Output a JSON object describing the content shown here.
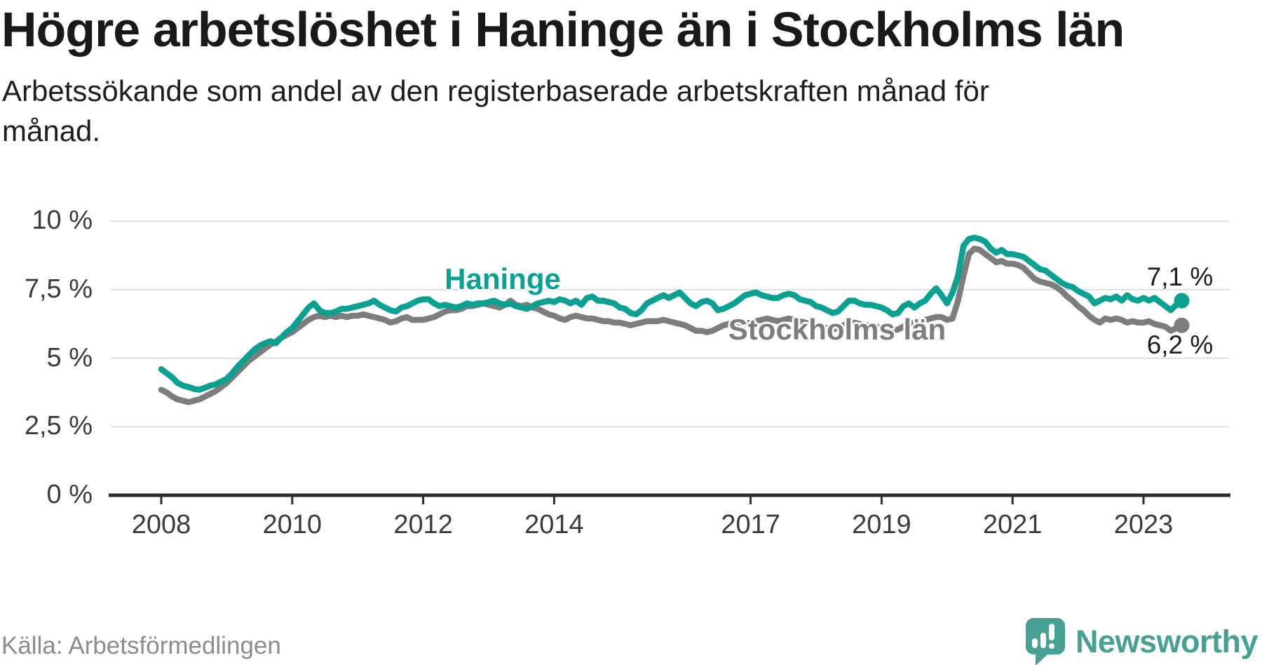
{
  "chart_data": {
    "type": "line",
    "title": "Högre arbetslöshet i Haninge än i Stockholms län",
    "subtitle_lines": [
      "Arbetssökande som andel av den registerbaserade arbetskraften månad för",
      "månad."
    ],
    "source": "Källa: Arbetsförmedlingen",
    "x_start_year": 2008,
    "interval_months": 1,
    "x_tick_years": [
      2008,
      2010,
      2012,
      2014,
      2017,
      2019,
      2021,
      2023
    ],
    "y_ticks": [
      {
        "value": 0,
        "label": "0 %"
      },
      {
        "value": 2.5,
        "label": "2,5 %"
      },
      {
        "value": 5,
        "label": "5 %"
      },
      {
        "value": 7.5,
        "label": "7,5 %"
      },
      {
        "value": 10,
        "label": "10 %"
      }
    ],
    "ylim": [
      0,
      10
    ],
    "grid": "horizontal",
    "series": [
      {
        "name": "Haninge",
        "color": "#0aa092",
        "end_label": "7,1 %",
        "end_value": 7.1,
        "values": [
          4.6,
          4.45,
          4.3,
          4.1,
          4.0,
          3.95,
          3.88,
          3.85,
          3.92,
          4.0,
          4.05,
          4.15,
          4.25,
          4.45,
          4.7,
          4.9,
          5.1,
          5.3,
          5.45,
          5.55,
          5.62,
          5.55,
          5.75,
          5.95,
          6.1,
          6.35,
          6.6,
          6.85,
          7.0,
          6.75,
          6.65,
          6.65,
          6.7,
          6.8,
          6.8,
          6.85,
          6.9,
          6.95,
          7.0,
          7.1,
          6.95,
          6.85,
          6.75,
          6.7,
          6.85,
          6.9,
          7.0,
          7.1,
          7.15,
          7.15,
          7.0,
          6.9,
          6.95,
          6.9,
          6.85,
          6.9,
          7.0,
          6.95,
          7.0,
          7.0,
          7.05,
          7.1,
          7.0,
          6.95,
          7.0,
          6.9,
          6.85,
          6.8,
          6.9,
          7.0,
          7.05,
          7.1,
          7.05,
          7.15,
          7.1,
          7.0,
          7.1,
          6.95,
          7.2,
          7.25,
          7.1,
          7.1,
          7.05,
          7.0,
          6.85,
          6.8,
          6.65,
          6.6,
          6.75,
          7.0,
          7.1,
          7.2,
          7.3,
          7.2,
          7.3,
          7.4,
          7.2,
          7.0,
          6.9,
          7.05,
          7.1,
          7.0,
          6.75,
          6.8,
          6.9,
          7.0,
          7.15,
          7.3,
          7.35,
          7.4,
          7.3,
          7.25,
          7.2,
          7.2,
          7.3,
          7.35,
          7.3,
          7.15,
          7.1,
          7.05,
          6.9,
          6.85,
          6.75,
          6.65,
          6.7,
          6.9,
          7.1,
          7.1,
          7.0,
          6.95,
          6.95,
          6.9,
          6.85,
          6.75,
          6.6,
          6.65,
          6.9,
          7.0,
          6.85,
          7.0,
          7.1,
          7.35,
          7.55,
          7.3,
          7.0,
          7.4,
          8.0,
          9.1,
          9.35,
          9.4,
          9.35,
          9.25,
          9.0,
          8.85,
          8.95,
          8.8,
          8.8,
          8.75,
          8.7,
          8.55,
          8.4,
          8.25,
          8.2,
          8.05,
          7.9,
          7.75,
          7.65,
          7.6,
          7.45,
          7.35,
          7.25,
          7.0,
          7.1,
          7.2,
          7.15,
          7.25,
          7.1,
          7.3,
          7.15,
          7.1,
          7.2,
          7.1,
          7.2,
          7.05,
          6.9,
          6.75,
          6.95,
          7.1
        ]
      },
      {
        "name": "Stockholms län",
        "color": "#7d7d7d",
        "end_label": "6,2 %",
        "end_value": 6.2,
        "values": [
          3.85,
          3.75,
          3.6,
          3.5,
          3.45,
          3.4,
          3.45,
          3.5,
          3.6,
          3.7,
          3.8,
          3.95,
          4.1,
          4.3,
          4.5,
          4.7,
          4.9,
          5.05,
          5.2,
          5.35,
          5.5,
          5.6,
          5.75,
          5.85,
          5.95,
          6.1,
          6.25,
          6.4,
          6.5,
          6.55,
          6.5,
          6.55,
          6.5,
          6.55,
          6.5,
          6.55,
          6.55,
          6.6,
          6.55,
          6.5,
          6.45,
          6.4,
          6.3,
          6.35,
          6.45,
          6.5,
          6.4,
          6.4,
          6.4,
          6.45,
          6.5,
          6.6,
          6.7,
          6.75,
          6.75,
          6.8,
          6.9,
          6.9,
          6.95,
          7.0,
          6.95,
          6.9,
          6.85,
          6.95,
          7.1,
          6.95,
          6.9,
          6.95,
          6.85,
          6.8,
          6.7,
          6.6,
          6.55,
          6.45,
          6.4,
          6.5,
          6.55,
          6.5,
          6.45,
          6.45,
          6.4,
          6.35,
          6.35,
          6.3,
          6.3,
          6.25,
          6.2,
          6.25,
          6.3,
          6.35,
          6.35,
          6.35,
          6.4,
          6.35,
          6.3,
          6.25,
          6.2,
          6.1,
          6.0,
          6.0,
          5.95,
          6.0,
          6.1,
          6.2,
          6.25,
          6.3,
          6.3,
          6.25,
          6.3,
          6.35,
          6.4,
          6.45,
          6.4,
          6.35,
          6.4,
          6.45,
          6.4,
          6.35,
          6.3,
          6.25,
          6.2,
          6.15,
          6.1,
          6.05,
          6.1,
          6.2,
          6.3,
          6.3,
          6.25,
          6.2,
          6.2,
          6.15,
          6.1,
          6.05,
          6.0,
          6.05,
          6.15,
          6.25,
          6.3,
          6.35,
          6.4,
          6.45,
          6.5,
          6.5,
          6.4,
          6.45,
          7.1,
          8.0,
          8.8,
          9.0,
          8.95,
          8.8,
          8.65,
          8.5,
          8.55,
          8.45,
          8.45,
          8.4,
          8.3,
          8.1,
          7.9,
          7.8,
          7.75,
          7.7,
          7.6,
          7.45,
          7.25,
          7.1,
          6.9,
          6.75,
          6.55,
          6.4,
          6.3,
          6.45,
          6.4,
          6.45,
          6.4,
          6.3,
          6.35,
          6.3,
          6.3,
          6.35,
          6.25,
          6.2,
          6.15,
          6.0,
          6.1,
          6.2
        ]
      }
    ],
    "colors": {
      "haninge": "#0aa092",
      "stockholm": "#7d7d7d",
      "gridline": "#dedede",
      "axis": "#2e2e2e",
      "tick_label": "#3b3b3b",
      "title": "#191919",
      "source": "#8c8c8c",
      "logo": "#46a094"
    }
  },
  "branding": {
    "logo_text": "Newsworthy"
  }
}
